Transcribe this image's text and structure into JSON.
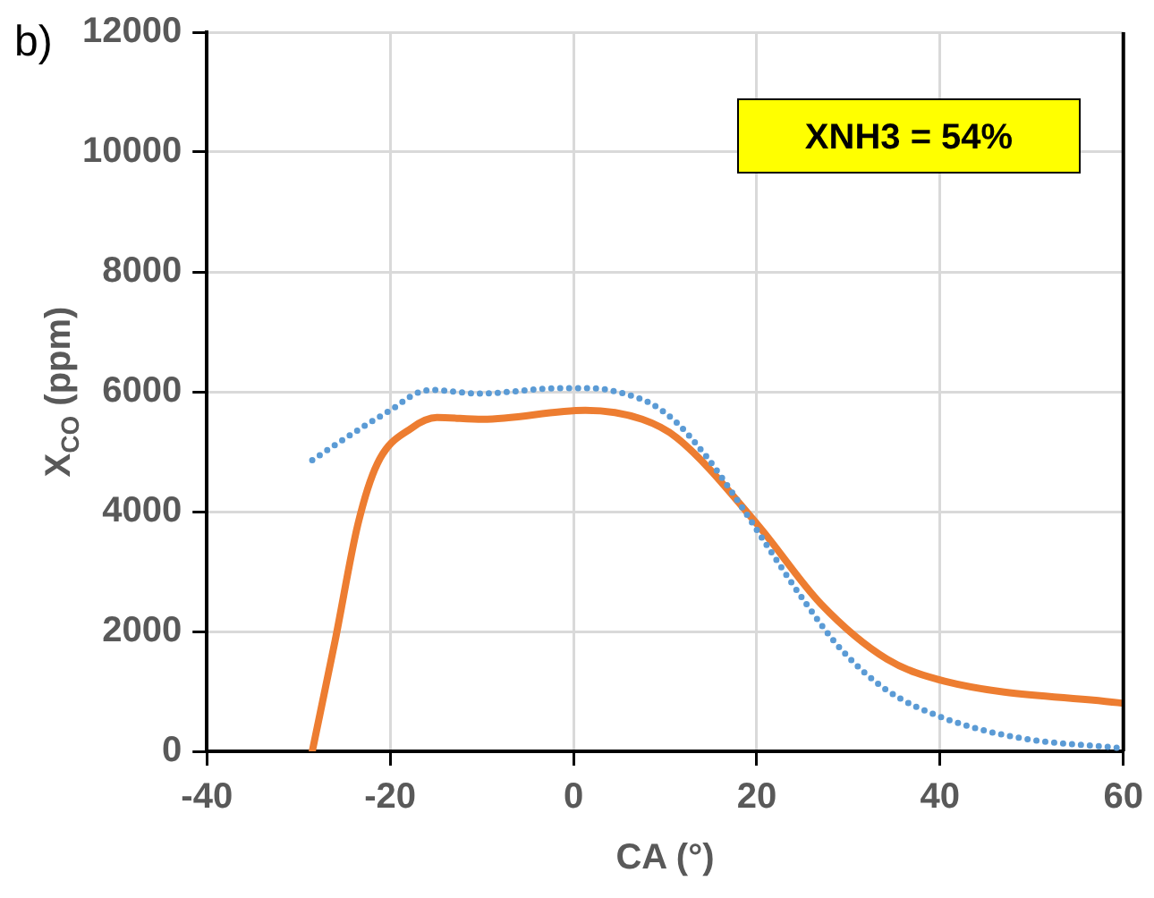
{
  "chart_data": {
    "type": "line",
    "xlabel": "CA (°)",
    "ylabel": "X$_{CO}$ (ppm)",
    "annotations": [
      "b)",
      "XNH3 = 54%"
    ],
    "xlim": [
      -40,
      60
    ],
    "xticks": [
      -40,
      -20,
      0,
      20,
      40,
      60
    ],
    "ylim": [
      0,
      12000
    ],
    "yticks": [
      0,
      2000,
      4000,
      6000,
      8000,
      10000,
      12000
    ],
    "grid": true,
    "legend": false,
    "marker": "none",
    "series": [
      {
        "color": "#5b9bd5",
        "line_style": "dotted",
        "x": [
          -28.5,
          -22.9,
          -19.7,
          -17.2,
          -15.5,
          -10.3,
          -1.5,
          1.9,
          5.5,
          8.6,
          11.3,
          14.5,
          17.4,
          21.6,
          25.4,
          29.1,
          34.2,
          40.5,
          48.8,
          59.3
        ],
        "values": [
          4860,
          5420,
          5720,
          5970,
          6030,
          5970,
          6060,
          6060,
          5970,
          5790,
          5480,
          4920,
          4300,
          3320,
          2460,
          1720,
          1020,
          550,
          220,
          60
        ]
      },
      {
        "color": "#ed7d31",
        "line_style": "solid",
        "x": [
          -28.5,
          -26,
          -23.5,
          -21.4,
          -17.6,
          -14.9,
          -9.9,
          1.3,
          7.5,
          11.3,
          20.1,
          27,
          34.2,
          40.5,
          60
        ],
        "values": [
          0,
          1850,
          3800,
          4800,
          5400,
          5570,
          5540,
          5690,
          5540,
          5230,
          3780,
          2460,
          1540,
          1170,
          800
        ]
      }
    ]
  }
}
